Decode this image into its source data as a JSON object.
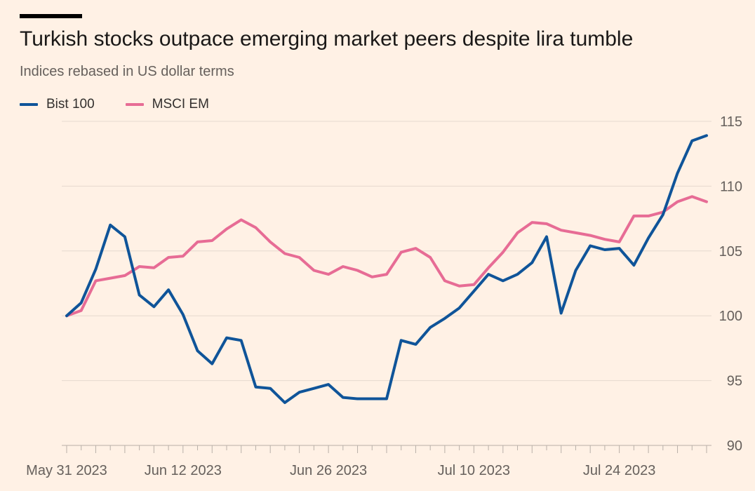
{
  "title": "Turkish stocks outpace emerging market peers despite lira tumble",
  "subtitle": "Indices rebased in US dollar terms",
  "colors": {
    "background": "#fff1e5",
    "bist": "#0f5499",
    "msci": "#e76c95",
    "grid": "#e6d9ce"
  },
  "chart_data": {
    "type": "line",
    "title": "Turkish stocks outpace emerging market peers despite lira tumble",
    "subtitle": "Indices rebased in US dollar terms",
    "ylim": [
      90,
      115
    ],
    "y_ticks": [
      "115",
      "110",
      "105",
      "100",
      "95",
      "90"
    ],
    "y_axis_side": "right",
    "x_tick_labels": [
      "May 31 2023",
      "Jun 12 2023",
      "Jun 26 2023",
      "Jul 10 2023",
      "Jul 24 2023"
    ],
    "grid": "horizontal",
    "legend": "top-left",
    "x": [
      "2023-05-31",
      "2023-06-01",
      "2023-06-02",
      "2023-06-05",
      "2023-06-06",
      "2023-06-07",
      "2023-06-08",
      "2023-06-09",
      "2023-06-12",
      "2023-06-13",
      "2023-06-14",
      "2023-06-15",
      "2023-06-16",
      "2023-06-19",
      "2023-06-20",
      "2023-06-21",
      "2023-06-22",
      "2023-06-23",
      "2023-06-26",
      "2023-06-27",
      "2023-06-28",
      "2023-06-29",
      "2023-06-30",
      "2023-07-03",
      "2023-07-04",
      "2023-07-05",
      "2023-07-06",
      "2023-07-07",
      "2023-07-10",
      "2023-07-11",
      "2023-07-12",
      "2023-07-13",
      "2023-07-14",
      "2023-07-17",
      "2023-07-18",
      "2023-07-19",
      "2023-07-20",
      "2023-07-21",
      "2023-07-24",
      "2023-07-25",
      "2023-07-26",
      "2023-07-27",
      "2023-07-28",
      "2023-07-31",
      "2023-08-01"
    ],
    "series": [
      {
        "name": "Bist 100",
        "color": "#0f5499",
        "values": [
          100.0,
          101.0,
          103.6,
          107.0,
          106.1,
          101.6,
          100.7,
          102.0,
          100.1,
          97.3,
          96.3,
          98.3,
          98.1,
          94.5,
          94.4,
          93.3,
          94.1,
          94.4,
          94.7,
          93.7,
          93.6,
          93.6,
          93.6,
          98.1,
          97.8,
          99.1,
          99.8,
          100.6,
          101.9,
          103.2,
          102.7,
          103.2,
          104.1,
          106.1,
          100.2,
          103.5,
          105.4,
          105.1,
          105.2,
          103.9,
          106.0,
          107.8,
          111.0,
          113.5,
          113.9
        ]
      },
      {
        "name": "MSCI EM",
        "color": "#e76c95",
        "values": [
          100.0,
          100.4,
          102.7,
          102.9,
          103.1,
          103.8,
          103.7,
          104.5,
          104.6,
          105.7,
          105.8,
          106.7,
          107.4,
          106.8,
          105.7,
          104.8,
          104.5,
          103.5,
          103.2,
          103.8,
          103.5,
          103.0,
          103.2,
          104.9,
          105.2,
          104.5,
          102.7,
          102.3,
          102.4,
          103.7,
          104.9,
          106.4,
          107.2,
          107.1,
          106.6,
          106.4,
          106.2,
          105.9,
          105.7,
          107.7,
          107.7,
          108.0,
          108.8,
          109.2,
          108.8
        ]
      }
    ]
  }
}
